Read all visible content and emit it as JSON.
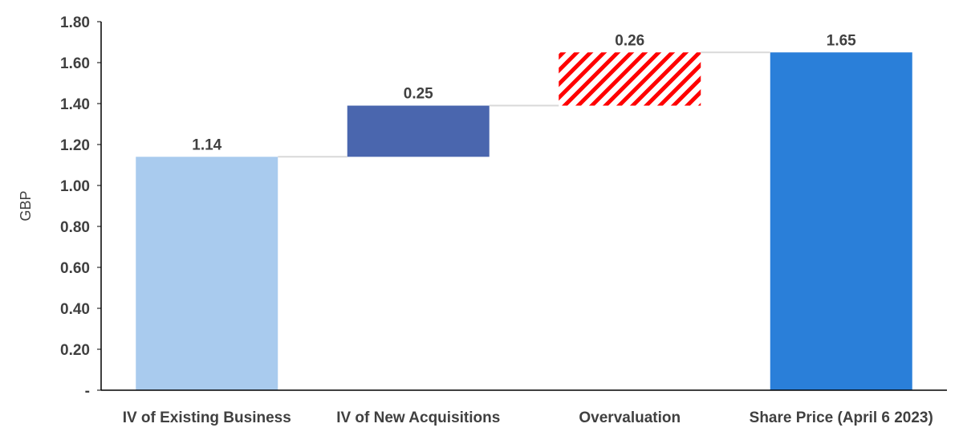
{
  "chart_data": {
    "type": "bar",
    "subtype": "waterfall",
    "title": "",
    "xlabel": "",
    "ylabel": "GBP",
    "ylim": [
      0,
      1.8
    ],
    "yticks": [
      "-",
      "0.20",
      "0.40",
      "0.60",
      "0.80",
      "1.00",
      "1.20",
      "1.40",
      "1.60",
      "1.80"
    ],
    "grid": false,
    "legend": "none",
    "categories": [
      "IV of Existing Business",
      "IV of New Acquisitions",
      "Overvaluation",
      "Share Price (April 6 2023)"
    ],
    "bars": [
      {
        "category": "IV of Existing Business",
        "base": 0,
        "value": 1.14,
        "label": "1.14",
        "color": "#a9cbee",
        "pattern": "solid"
      },
      {
        "category": "IV of New Acquisitions",
        "base": 1.14,
        "value": 0.25,
        "label": "0.25",
        "color": "#4a66ae",
        "pattern": "solid"
      },
      {
        "category": "Overvaluation",
        "base": 1.39,
        "value": 0.26,
        "label": "0.26",
        "color": "#ff0000",
        "pattern": "diagonal-stripes"
      },
      {
        "category": "Share Price (April 6 2023)",
        "base": 0,
        "value": 1.65,
        "label": "1.65",
        "color": "#2a7fd9",
        "pattern": "solid"
      }
    ],
    "connector_color": "#d9d9d9",
    "axis_color": "#000000"
  }
}
